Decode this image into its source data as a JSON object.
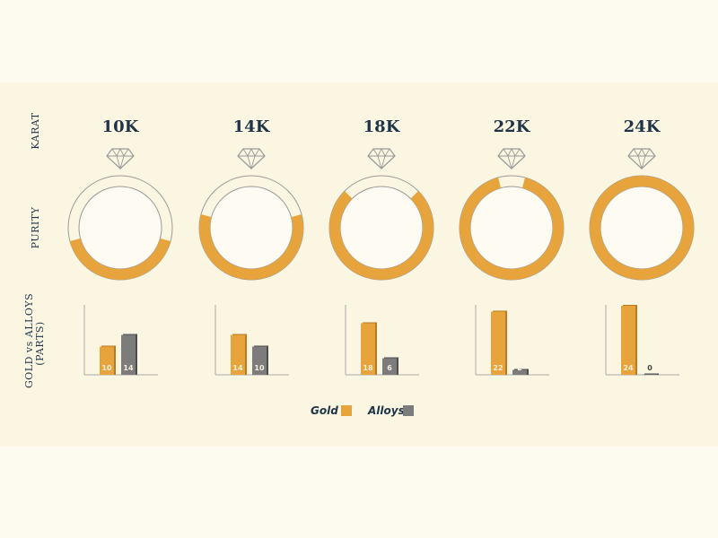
{
  "row_labels": {
    "karat": "KARAT",
    "purity": "PURITY",
    "parts_line1": "GOLD vs ALLOYS",
    "parts_line2": "(PARTS)"
  },
  "colors": {
    "gold": "#e8a43c",
    "gold_dark": "#b97a22",
    "alloy": "#7c7c7c",
    "alloy_dark": "#4e4e4e",
    "text": "#1e3448",
    "ring_outline": "#9a9a9a"
  },
  "legend": {
    "gold": "Gold",
    "alloys": "Alloys"
  },
  "chart_data": {
    "type": "bar",
    "categories": [
      "10K",
      "14K",
      "18K",
      "22K",
      "24K"
    ],
    "purity_labels": [
      "41.67%",
      "58.33%",
      "75.00%",
      "91.67%",
      "99.9%"
    ],
    "purity_values": [
      41.67,
      58.33,
      75.0,
      91.67,
      99.9
    ],
    "series": [
      {
        "name": "Gold",
        "values": [
          10,
          14,
          18,
          22,
          24
        ]
      },
      {
        "name": "Alloys",
        "values": [
          14,
          10,
          6,
          2,
          0
        ]
      }
    ],
    "ylim": [
      0,
      24
    ],
    "legend_position": "bottom"
  }
}
